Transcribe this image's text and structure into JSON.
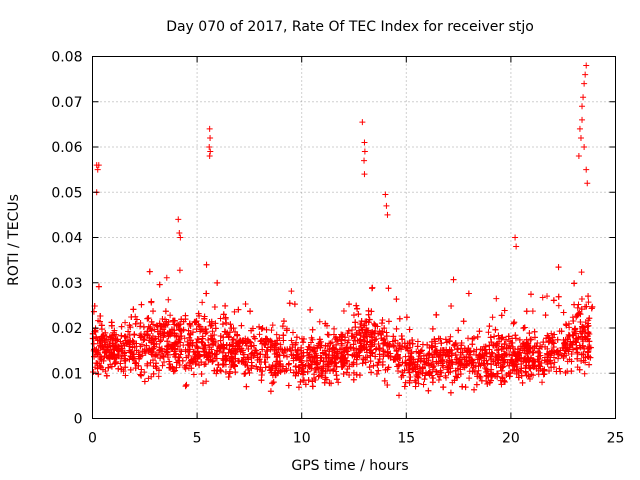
{
  "chart_data": {
    "type": "scatter",
    "title": "Day 070 of 2017, Rate Of TEC Index for receiver stjo",
    "xlabel": "GPS time / hours",
    "ylabel": "ROTI / TECUs",
    "xlim": [
      0,
      25
    ],
    "ylim": [
      0,
      0.08
    ],
    "grid": true,
    "marker": "+",
    "color": "#ff0000",
    "x_ticks": [
      0,
      5,
      10,
      15,
      20,
      25
    ],
    "y_ticks": [
      0,
      0.01,
      0.02,
      0.03,
      0.04,
      0.05,
      0.06,
      0.07,
      0.08
    ],
    "x_tick_labels": [
      "0",
      "5",
      "10",
      "15",
      "20",
      "25"
    ],
    "y_tick_labels": [
      "0",
      "0.01",
      "0.02",
      "0.03",
      "0.04",
      "0.05",
      "0.06",
      "0.07",
      "0.08"
    ],
    "data_range_hours": [
      0,
      23.9
    ],
    "series_profile": [
      {
        "hour": 0.0,
        "median": 0.016,
        "spread": 0.006
      },
      {
        "hour": 1.0,
        "median": 0.015,
        "spread": 0.006
      },
      {
        "hour": 2.0,
        "median": 0.016,
        "spread": 0.007
      },
      {
        "hour": 3.0,
        "median": 0.017,
        "spread": 0.007
      },
      {
        "hour": 4.0,
        "median": 0.017,
        "spread": 0.008
      },
      {
        "hour": 5.0,
        "median": 0.016,
        "spread": 0.007
      },
      {
        "hour": 6.0,
        "median": 0.016,
        "spread": 0.007
      },
      {
        "hour": 7.0,
        "median": 0.015,
        "spread": 0.007
      },
      {
        "hour": 8.0,
        "median": 0.014,
        "spread": 0.006
      },
      {
        "hour": 9.0,
        "median": 0.014,
        "spread": 0.006
      },
      {
        "hour": 10.0,
        "median": 0.013,
        "spread": 0.006
      },
      {
        "hour": 11.0,
        "median": 0.013,
        "spread": 0.006
      },
      {
        "hour": 12.0,
        "median": 0.014,
        "spread": 0.006
      },
      {
        "hour": 13.0,
        "median": 0.017,
        "spread": 0.007
      },
      {
        "hour": 14.0,
        "median": 0.016,
        "spread": 0.007
      },
      {
        "hour": 15.0,
        "median": 0.013,
        "spread": 0.006
      },
      {
        "hour": 16.0,
        "median": 0.012,
        "spread": 0.005
      },
      {
        "hour": 17.0,
        "median": 0.013,
        "spread": 0.006
      },
      {
        "hour": 18.0,
        "median": 0.013,
        "spread": 0.006
      },
      {
        "hour": 19.0,
        "median": 0.013,
        "spread": 0.006
      },
      {
        "hour": 20.0,
        "median": 0.013,
        "spread": 0.006
      },
      {
        "hour": 21.0,
        "median": 0.014,
        "spread": 0.006
      },
      {
        "hour": 22.0,
        "median": 0.015,
        "spread": 0.007
      },
      {
        "hour": 23.0,
        "median": 0.017,
        "spread": 0.008
      },
      {
        "hour": 23.9,
        "median": 0.018,
        "spread": 0.009
      }
    ],
    "outliers": [
      {
        "x": 0.2,
        "y": 0.056
      },
      {
        "x": 0.25,
        "y": 0.055
      },
      {
        "x": 0.3,
        "y": 0.056
      },
      {
        "x": 0.2,
        "y": 0.05
      },
      {
        "x": 4.1,
        "y": 0.044
      },
      {
        "x": 4.15,
        "y": 0.041
      },
      {
        "x": 4.2,
        "y": 0.04
      },
      {
        "x": 5.6,
        "y": 0.064
      },
      {
        "x": 5.62,
        "y": 0.062
      },
      {
        "x": 5.58,
        "y": 0.06
      },
      {
        "x": 5.63,
        "y": 0.059
      },
      {
        "x": 5.6,
        "y": 0.058
      },
      {
        "x": 12.9,
        "y": 0.0655
      },
      {
        "x": 13.0,
        "y": 0.061
      },
      {
        "x": 13.02,
        "y": 0.059
      },
      {
        "x": 12.98,
        "y": 0.057
      },
      {
        "x": 13.0,
        "y": 0.054
      },
      {
        "x": 14.0,
        "y": 0.0495
      },
      {
        "x": 14.05,
        "y": 0.047
      },
      {
        "x": 14.1,
        "y": 0.045
      },
      {
        "x": 20.2,
        "y": 0.04
      },
      {
        "x": 20.25,
        "y": 0.038
      },
      {
        "x": 23.3,
        "y": 0.064
      },
      {
        "x": 23.4,
        "y": 0.069
      },
      {
        "x": 23.5,
        "y": 0.074
      },
      {
        "x": 23.6,
        "y": 0.078
      },
      {
        "x": 23.55,
        "y": 0.076
      },
      {
        "x": 23.45,
        "y": 0.071
      },
      {
        "x": 23.35,
        "y": 0.062
      },
      {
        "x": 23.25,
        "y": 0.058
      },
      {
        "x": 23.6,
        "y": 0.055
      },
      {
        "x": 23.65,
        "y": 0.052
      },
      {
        "x": 23.5,
        "y": 0.06
      },
      {
        "x": 23.4,
        "y": 0.066
      }
    ]
  }
}
